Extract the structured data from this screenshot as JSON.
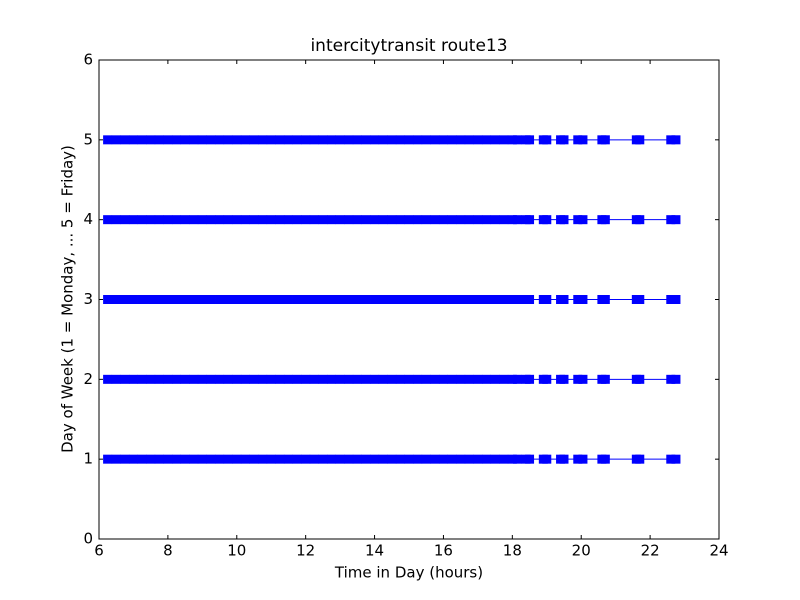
{
  "chart_data": {
    "type": "line",
    "marker": "square",
    "title": "intercitytransit route13",
    "x_label": "Time in Day (hours)",
    "y_label": "Day of Week (1 = Monday, ... 5 = Friday)",
    "xlim": [
      6,
      24
    ],
    "xticks": [
      6,
      8,
      10,
      12,
      14,
      16,
      18,
      20,
      22,
      24
    ],
    "ylim": [
      0,
      6
    ],
    "yticks": [
      0,
      1,
      2,
      3,
      4,
      5,
      6
    ],
    "grid": false,
    "x": [
      6.25,
      6.5,
      6.75,
      7,
      7.25,
      7.5,
      7.75,
      8,
      8.25,
      8.5,
      8.75,
      9,
      9.25,
      9.5,
      9.75,
      10,
      10.25,
      10.5,
      10.75,
      11,
      11.25,
      11.5,
      11.75,
      12,
      12.25,
      12.5,
      12.75,
      13,
      13.25,
      13.5,
      13.75,
      14,
      14.25,
      14.5,
      14.75,
      15,
      15.25,
      15.5,
      15.75,
      16,
      16.25,
      16.5,
      16.75,
      17,
      17.25,
      17.5,
      17.75,
      18,
      18.15,
      18.4,
      18.5,
      18.9,
      19,
      19.4,
      19.5,
      19.9,
      20.05,
      20.6,
      20.7,
      21.6,
      21.7,
      22.6,
      22.75
    ],
    "series": [
      {
        "color": "#0000ff",
        "values": [
          1,
          1,
          1,
          1,
          1,
          1,
          1,
          1,
          1,
          1,
          1,
          1,
          1,
          1,
          1,
          1,
          1,
          1,
          1,
          1,
          1,
          1,
          1,
          1,
          1,
          1,
          1,
          1,
          1,
          1,
          1,
          1,
          1,
          1,
          1,
          1,
          1,
          1,
          1,
          1,
          1,
          1,
          1,
          1,
          1,
          1,
          1,
          1,
          1,
          1,
          1,
          1,
          1,
          1,
          1,
          1,
          1,
          1,
          1,
          1,
          1,
          1,
          1
        ]
      },
      {
        "color": "#0000ff",
        "values": [
          2,
          2,
          2,
          2,
          2,
          2,
          2,
          2,
          2,
          2,
          2,
          2,
          2,
          2,
          2,
          2,
          2,
          2,
          2,
          2,
          2,
          2,
          2,
          2,
          2,
          2,
          2,
          2,
          2,
          2,
          2,
          2,
          2,
          2,
          2,
          2,
          2,
          2,
          2,
          2,
          2,
          2,
          2,
          2,
          2,
          2,
          2,
          2,
          2,
          2,
          2,
          2,
          2,
          2,
          2,
          2,
          2,
          2,
          2,
          2,
          2,
          2,
          2
        ]
      },
      {
        "color": "#0000ff",
        "values": [
          3,
          3,
          3,
          3,
          3,
          3,
          3,
          3,
          3,
          3,
          3,
          3,
          3,
          3,
          3,
          3,
          3,
          3,
          3,
          3,
          3,
          3,
          3,
          3,
          3,
          3,
          3,
          3,
          3,
          3,
          3,
          3,
          3,
          3,
          3,
          3,
          3,
          3,
          3,
          3,
          3,
          3,
          3,
          3,
          3,
          3,
          3,
          3,
          3,
          3,
          3,
          3,
          3,
          3,
          3,
          3,
          3,
          3,
          3,
          3,
          3,
          3,
          3
        ]
      },
      {
        "color": "#0000ff",
        "values": [
          4,
          4,
          4,
          4,
          4,
          4,
          4,
          4,
          4,
          4,
          4,
          4,
          4,
          4,
          4,
          4,
          4,
          4,
          4,
          4,
          4,
          4,
          4,
          4,
          4,
          4,
          4,
          4,
          4,
          4,
          4,
          4,
          4,
          4,
          4,
          4,
          4,
          4,
          4,
          4,
          4,
          4,
          4,
          4,
          4,
          4,
          4,
          4,
          4,
          4,
          4,
          4,
          4,
          4,
          4,
          4,
          4,
          4,
          4,
          4,
          4,
          4,
          4
        ]
      },
      {
        "color": "#0000ff",
        "values": [
          5,
          5,
          5,
          5,
          5,
          5,
          5,
          5,
          5,
          5,
          5,
          5,
          5,
          5,
          5,
          5,
          5,
          5,
          5,
          5,
          5,
          5,
          5,
          5,
          5,
          5,
          5,
          5,
          5,
          5,
          5,
          5,
          5,
          5,
          5,
          5,
          5,
          5,
          5,
          5,
          5,
          5,
          5,
          5,
          5,
          5,
          5,
          5,
          5,
          5,
          5,
          5,
          5,
          5,
          5,
          5,
          5,
          5,
          5,
          5,
          5,
          5,
          5
        ]
      }
    ]
  }
}
